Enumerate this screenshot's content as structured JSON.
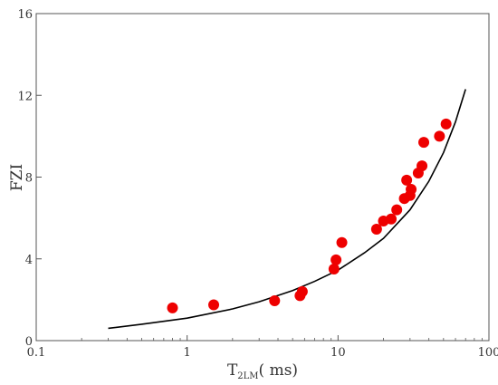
{
  "chart_data": {
    "type": "scatter",
    "title": "",
    "xlabel": "T",
    "xlabel_subscript": "2LM",
    "xlabel_units": "( ms)",
    "ylabel": "FZI",
    "xscale": "log",
    "xlim": [
      0.1,
      100
    ],
    "ylim": [
      0,
      16
    ],
    "xticks": [
      {
        "value": 0.1,
        "label": "0.1"
      },
      {
        "value": 1,
        "label": "1"
      },
      {
        "value": 10,
        "label": "10"
      },
      {
        "value": 100,
        "label": "100"
      }
    ],
    "yticks": [
      {
        "value": 0,
        "label": "0"
      },
      {
        "value": 4,
        "label": "4"
      },
      {
        "value": 8,
        "label": "8"
      },
      {
        "value": 12,
        "label": "12"
      },
      {
        "value": 16,
        "label": "16"
      }
    ],
    "grid": false,
    "legend": "none",
    "points": [
      {
        "x": 0.8,
        "y": 1.6
      },
      {
        "x": 1.5,
        "y": 1.75
      },
      {
        "x": 3.8,
        "y": 1.95
      },
      {
        "x": 5.6,
        "y": 2.2
      },
      {
        "x": 5.8,
        "y": 2.4
      },
      {
        "x": 9.4,
        "y": 3.5
      },
      {
        "x": 9.7,
        "y": 3.95
      },
      {
        "x": 10.6,
        "y": 4.8
      },
      {
        "x": 18.0,
        "y": 5.45
      },
      {
        "x": 20.0,
        "y": 5.85
      },
      {
        "x": 22.5,
        "y": 5.95
      },
      {
        "x": 24.5,
        "y": 6.4
      },
      {
        "x": 27.5,
        "y": 6.95
      },
      {
        "x": 30.0,
        "y": 7.1
      },
      {
        "x": 30.5,
        "y": 7.4
      },
      {
        "x": 28.5,
        "y": 7.85
      },
      {
        "x": 34.0,
        "y": 8.2
      },
      {
        "x": 36.0,
        "y": 8.55
      },
      {
        "x": 37.0,
        "y": 9.7
      },
      {
        "x": 47.0,
        "y": 10.0
      },
      {
        "x": 52.0,
        "y": 10.6
      }
    ],
    "fit_curve": {
      "points": [
        {
          "x": 0.3,
          "y": 0.6
        },
        {
          "x": 0.5,
          "y": 0.8
        },
        {
          "x": 1,
          "y": 1.1
        },
        {
          "x": 2,
          "y": 1.55
        },
        {
          "x": 3,
          "y": 1.9
        },
        {
          "x": 5,
          "y": 2.45
        },
        {
          "x": 7,
          "y": 2.9
        },
        {
          "x": 10,
          "y": 3.45
        },
        {
          "x": 15,
          "y": 4.3
        },
        {
          "x": 20,
          "y": 5.0
        },
        {
          "x": 30,
          "y": 6.4
        },
        {
          "x": 40,
          "y": 7.8
        },
        {
          "x": 50,
          "y": 9.2
        },
        {
          "x": 60,
          "y": 10.7
        },
        {
          "x": 70,
          "y": 12.3
        }
      ]
    },
    "colors": {
      "points": "#ee0000",
      "curve": "#000000",
      "axes": "#555555",
      "text": "#333333"
    }
  }
}
